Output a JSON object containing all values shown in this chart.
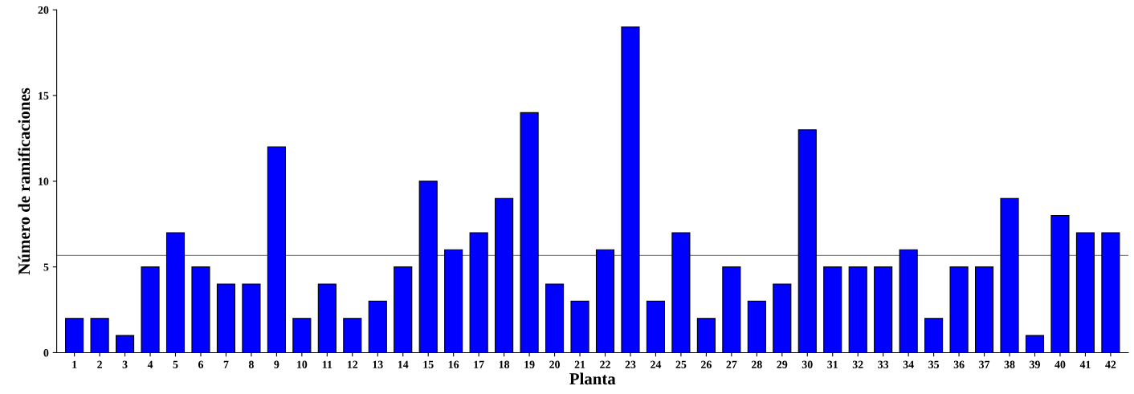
{
  "chart_data": {
    "type": "bar",
    "xlabel": "Planta",
    "ylabel": "Número de ramificaciones",
    "categories": [
      "1",
      "2",
      "3",
      "4",
      "5",
      "6",
      "7",
      "8",
      "9",
      "10",
      "11",
      "12",
      "13",
      "14",
      "15",
      "16",
      "17",
      "18",
      "19",
      "20",
      "21",
      "22",
      "23",
      "24",
      "25",
      "26",
      "27",
      "28",
      "29",
      "30",
      "31",
      "32",
      "33",
      "34",
      "35",
      "36",
      "37",
      "38",
      "39",
      "40",
      "41",
      "42"
    ],
    "values": [
      2,
      2,
      1,
      5,
      7,
      5,
      4,
      4,
      12,
      2,
      4,
      2,
      3,
      5,
      10,
      6,
      7,
      9,
      14,
      4,
      3,
      6,
      19,
      3,
      7,
      2,
      5,
      3,
      4,
      13,
      5,
      5,
      5,
      6,
      2,
      5,
      5,
      9,
      1,
      8,
      7,
      7
    ],
    "color": "#0000ff",
    "ylim": [
      0,
      20
    ],
    "yticks": [
      0,
      5,
      10,
      15,
      20
    ],
    "grid": false,
    "legend": false,
    "ref_lines": [
      {
        "axis": "y",
        "value": 5.67,
        "color": "#808080"
      }
    ]
  }
}
